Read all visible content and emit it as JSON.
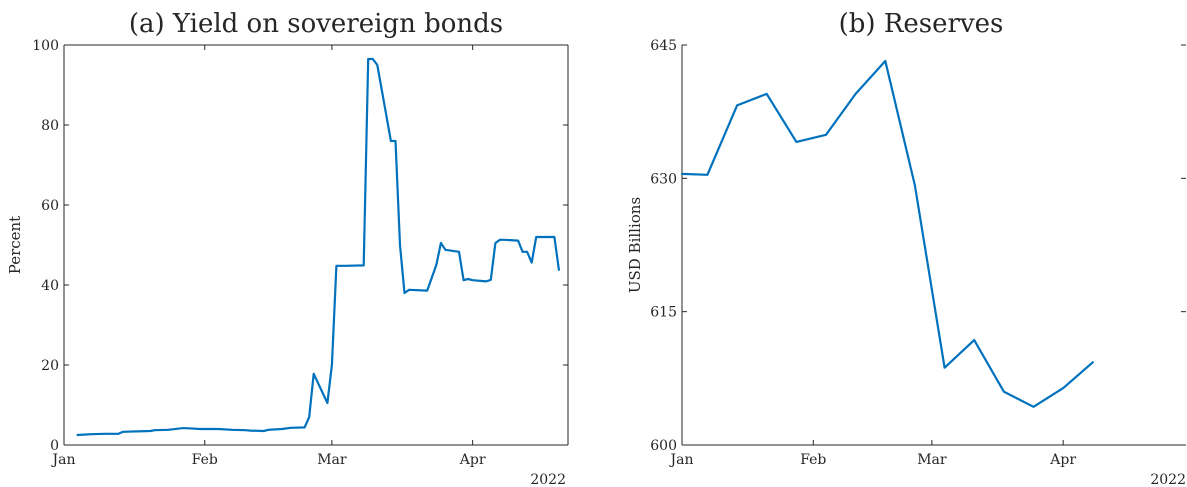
{
  "chart_data": [
    {
      "type": "line",
      "title": "(a) Yield on sovereign bonds",
      "ylabel": "Percent",
      "xlabel": "",
      "year_label": "2022",
      "ylim": [
        0,
        100
      ],
      "xlim": [
        "2022-01-01",
        "2022-04-22"
      ],
      "y_ticks": [
        0,
        20,
        40,
        60,
        80,
        100
      ],
      "x_ticks": [
        {
          "date": "2022-01-01",
          "label": "Jan"
        },
        {
          "date": "2022-02-01",
          "label": "Feb"
        },
        {
          "date": "2022-03-01",
          "label": "Mar"
        },
        {
          "date": "2022-04-01",
          "label": "Apr"
        }
      ],
      "color": "#0072BD",
      "grid": false,
      "series": [
        {
          "x": [
            "2022-01-04",
            "2022-01-07",
            "2022-01-10",
            "2022-01-13",
            "2022-01-14",
            "2022-01-17",
            "2022-01-20",
            "2022-01-21",
            "2022-01-24",
            "2022-01-27",
            "2022-01-28",
            "2022-01-31",
            "2022-02-01",
            "2022-02-04",
            "2022-02-07",
            "2022-02-10",
            "2022-02-11",
            "2022-02-14",
            "2022-02-15",
            "2022-02-18",
            "2022-02-20",
            "2022-02-23",
            "2022-02-24",
            "2022-02-25",
            "2022-02-28",
            "2022-03-01",
            "2022-03-02",
            "2022-03-04",
            "2022-03-08",
            "2022-03-09",
            "2022-03-10",
            "2022-03-11",
            "2022-03-14",
            "2022-03-15",
            "2022-03-16",
            "2022-03-17",
            "2022-03-18",
            "2022-03-22",
            "2022-03-24",
            "2022-03-25",
            "2022-03-26",
            "2022-03-29",
            "2022-03-30",
            "2022-03-31",
            "2022-04-01",
            "2022-04-04",
            "2022-04-05",
            "2022-04-06",
            "2022-04-07",
            "2022-04-08",
            "2022-04-11",
            "2022-04-12",
            "2022-04-13",
            "2022-04-14",
            "2022-04-15",
            "2022-04-18",
            "2022-04-19",
            "2022-04-20"
          ],
          "values": [
            2.5,
            2.7,
            2.8,
            2.8,
            3.3,
            3.4,
            3.5,
            3.7,
            3.8,
            4.2,
            4.2,
            4.0,
            4.0,
            4.0,
            3.8,
            3.7,
            3.6,
            3.5,
            3.8,
            4.0,
            4.3,
            4.4,
            7.0,
            17.8,
            10.5,
            20.0,
            44.8,
            44.8,
            44.9,
            96.5,
            96.5,
            95.0,
            76.0,
            76.0,
            50.0,
            38.0,
            38.8,
            38.6,
            45.0,
            50.5,
            48.8,
            48.3,
            41.2,
            41.5,
            41.2,
            40.9,
            41.3,
            50.5,
            51.3,
            51.3,
            51.1,
            48.3,
            48.3,
            45.6,
            52.0,
            52.0,
            52.0,
            43.8
          ]
        }
      ]
    },
    {
      "type": "line",
      "title": "(b) Reserves",
      "ylabel": "USD Billions",
      "xlabel": "",
      "year_label": "2022",
      "ylim": [
        600,
        645
      ],
      "xlim": [
        "2022-01-01",
        "2022-04-30"
      ],
      "y_ticks": [
        600,
        615,
        630,
        645
      ],
      "x_ticks": [
        {
          "date": "2022-01-01",
          "label": "Jan"
        },
        {
          "date": "2022-02-01",
          "label": "Feb"
        },
        {
          "date": "2022-03-01",
          "label": "Mar"
        },
        {
          "date": "2022-04-01",
          "label": "Apr"
        }
      ],
      "color": "#0072BD",
      "grid": false,
      "series": [
        {
          "x": [
            "2022-01-01",
            "2022-01-07",
            "2022-01-14",
            "2022-01-21",
            "2022-01-28",
            "2022-02-04",
            "2022-02-11",
            "2022-02-18",
            "2022-02-25",
            "2022-03-04",
            "2022-03-11",
            "2022-03-18",
            "2022-03-25",
            "2022-04-01",
            "2022-04-08"
          ],
          "values": [
            630.5,
            630.4,
            638.2,
            639.5,
            634.1,
            634.9,
            639.5,
            643.2,
            629.2,
            608.7,
            611.8,
            606.0,
            604.3,
            606.4,
            609.3
          ]
        }
      ]
    }
  ]
}
